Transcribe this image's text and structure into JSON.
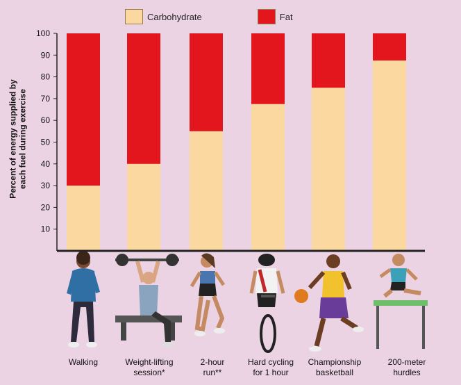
{
  "chart_data": {
    "type": "bar",
    "stacked": true,
    "ylabel_lines": [
      "Percent of energy supplied by",
      "each fuel during exercise"
    ],
    "ylim": [
      0,
      100
    ],
    "yticks": [
      10,
      20,
      30,
      40,
      50,
      60,
      70,
      80,
      90,
      100
    ],
    "legend_position": "top",
    "categories": [
      {
        "lines": [
          "Walking"
        ]
      },
      {
        "lines": [
          "Weight-lifting",
          "session*"
        ]
      },
      {
        "lines": [
          "2-hour",
          "run**"
        ]
      },
      {
        "lines": [
          "Hard cycling",
          "for 1 hour"
        ]
      },
      {
        "lines": [
          "Championship",
          "basketball"
        ]
      },
      {
        "lines": [
          "200-meter",
          "hurdles"
        ]
      }
    ],
    "series": [
      {
        "name": "Carbohydrate",
        "color": "#fbd8a0",
        "values": [
          30,
          40,
          55,
          67.5,
          75,
          87.5
        ]
      },
      {
        "name": "Fat",
        "color": "#e2161c",
        "values": [
          70,
          60,
          45,
          32.5,
          25,
          12.5
        ]
      }
    ]
  },
  "illustrations": [
    "walking-person",
    "weight-lifter",
    "runner",
    "cyclist",
    "basketball-player",
    "hurdler"
  ]
}
